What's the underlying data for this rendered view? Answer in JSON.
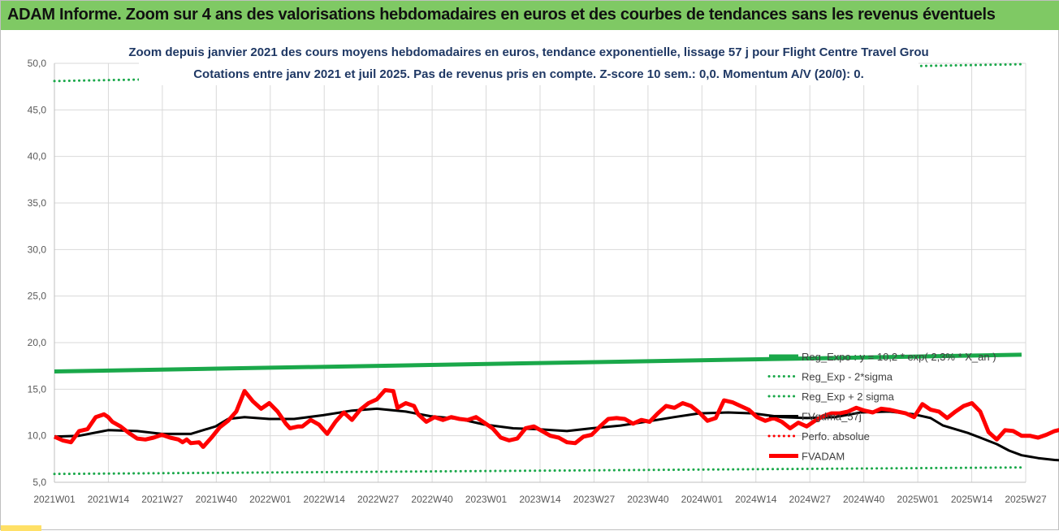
{
  "banner": {
    "title": "ADAM Informe. Zoom sur 4 ans des valorisations hebdomadaires en euros et des courbes de tendances sans les revenus éventuels",
    "color": "#7fc964"
  },
  "chart_data": {
    "type": "line",
    "title_line1": "Zoom depuis janvier 2021 des cours moyens hebdomadaires en euros, tendance exponentielle, lissage 57 j pour Flight Centre Travel Grou",
    "title_line2": "Cotations entre janv 2021 et juil 2025. Pas de revenus pris en compte. Z-score 10 sem.: 0,0. Momentum A/V (20/0): 0.",
    "xlabel": "",
    "ylabel": "",
    "ylim": [
      5,
      50
    ],
    "y_ticks": [
      "5,0",
      "10,0",
      "15,0",
      "20,0",
      "25,0",
      "30,0",
      "35,0",
      "40,0",
      "45,0",
      "50,0"
    ],
    "x_ticks": [
      "2021W01",
      "2021W14",
      "2021W27",
      "2021W40",
      "2022W01",
      "2022W14",
      "2022W27",
      "2022W40",
      "2023W01",
      "2023W14",
      "2023W27",
      "2023W40",
      "2024W01",
      "2024W14",
      "2024W27",
      "2024W40",
      "2025W01",
      "2025W14",
      "2025W27"
    ],
    "grid": true,
    "legend_position": "bottom-right",
    "weeks_total": 235,
    "series": [
      {
        "name": "Reg_Expo : y = 10,2 * exp( 2,3% * X_an )",
        "color": "#1aa84a",
        "style": "thick",
        "points": [
          [
            0,
            16.9
          ],
          [
            234,
            18.7
          ]
        ]
      },
      {
        "name": "Reg_Exp - 2*sigma",
        "color": "#1aa84a",
        "style": "dotted",
        "points": [
          [
            0,
            5.9
          ],
          [
            234,
            6.6
          ]
        ]
      },
      {
        "name": "Reg_Exp + 2 sigma",
        "color": "#1aa84a",
        "style": "dotted",
        "points": [
          [
            0,
            48.1
          ],
          [
            234,
            49.9
          ]
        ]
      },
      {
        "name": "FVgdma_57j",
        "color": "#000000",
        "style": "medium",
        "points": [
          [
            0,
            9.9
          ],
          [
            6,
            10.0
          ],
          [
            13,
            10.6
          ],
          [
            20,
            10.5
          ],
          [
            26,
            10.2
          ],
          [
            33,
            10.2
          ],
          [
            39,
            11.0
          ],
          [
            42,
            11.8
          ],
          [
            46,
            12.0
          ],
          [
            52,
            11.8
          ],
          [
            58,
            11.8
          ],
          [
            65,
            12.2
          ],
          [
            72,
            12.7
          ],
          [
            78,
            12.9
          ],
          [
            85,
            12.6
          ],
          [
            91,
            12.1
          ],
          [
            98,
            11.8
          ],
          [
            104,
            11.2
          ],
          [
            111,
            10.8
          ],
          [
            117,
            10.7
          ],
          [
            124,
            10.5
          ],
          [
            130,
            10.8
          ],
          [
            137,
            11.1
          ],
          [
            143,
            11.5
          ],
          [
            150,
            12.0
          ],
          [
            156,
            12.4
          ],
          [
            163,
            12.5
          ],
          [
            169,
            12.4
          ],
          [
            176,
            12.0
          ],
          [
            182,
            11.9
          ],
          [
            189,
            12.0
          ],
          [
            195,
            12.5
          ],
          [
            202,
            12.6
          ],
          [
            208,
            12.3
          ],
          [
            212,
            11.9
          ],
          [
            215,
            11.1
          ],
          [
            221,
            10.3
          ],
          [
            224,
            9.8
          ],
          [
            228,
            9.1
          ],
          [
            231,
            8.4
          ],
          [
            234,
            7.9
          ],
          [
            238,
            7.6
          ],
          [
            242,
            7.4
          ],
          [
            246,
            7.3
          ]
        ]
      },
      {
        "name": "Perfo. absolue",
        "color": "#ff0000",
        "style": "dotted",
        "points": []
      },
      {
        "name": "FVADAM",
        "color": "#ff0000",
        "style": "thick",
        "points": [
          [
            0,
            9.9
          ],
          [
            2,
            9.5
          ],
          [
            4,
            9.3
          ],
          [
            6,
            10.5
          ],
          [
            8,
            10.7
          ],
          [
            10,
            12.0
          ],
          [
            12,
            12.3
          ],
          [
            13,
            12.0
          ],
          [
            14,
            11.5
          ],
          [
            16,
            11.0
          ],
          [
            18,
            10.3
          ],
          [
            20,
            9.7
          ],
          [
            22,
            9.6
          ],
          [
            24,
            9.8
          ],
          [
            26,
            10.1
          ],
          [
            28,
            9.8
          ],
          [
            30,
            9.6
          ],
          [
            31,
            9.3
          ],
          [
            32,
            9.6
          ],
          [
            33,
            9.2
          ],
          [
            35,
            9.3
          ],
          [
            36,
            8.8
          ],
          [
            38,
            9.8
          ],
          [
            40,
            10.9
          ],
          [
            42,
            11.6
          ],
          [
            44,
            12.6
          ],
          [
            46,
            14.8
          ],
          [
            48,
            13.7
          ],
          [
            50,
            12.9
          ],
          [
            52,
            13.5
          ],
          [
            54,
            12.6
          ],
          [
            56,
            11.3
          ],
          [
            57,
            10.8
          ],
          [
            59,
            11.0
          ],
          [
            60,
            11.0
          ],
          [
            62,
            11.7
          ],
          [
            64,
            11.2
          ],
          [
            66,
            10.2
          ],
          [
            68,
            11.5
          ],
          [
            70,
            12.5
          ],
          [
            72,
            11.7
          ],
          [
            74,
            12.8
          ],
          [
            76,
            13.5
          ],
          [
            78,
            13.9
          ],
          [
            80,
            14.9
          ],
          [
            82,
            14.8
          ],
          [
            83,
            13.0
          ],
          [
            85,
            13.5
          ],
          [
            87,
            13.2
          ],
          [
            88,
            12.3
          ],
          [
            90,
            11.5
          ],
          [
            92,
            12.0
          ],
          [
            94,
            11.7
          ],
          [
            96,
            12.0
          ],
          [
            98,
            11.8
          ],
          [
            100,
            11.7
          ],
          [
            102,
            12.0
          ],
          [
            104,
            11.4
          ],
          [
            106,
            10.8
          ],
          [
            108,
            9.8
          ],
          [
            110,
            9.5
          ],
          [
            112,
            9.7
          ],
          [
            114,
            10.8
          ],
          [
            116,
            11.0
          ],
          [
            118,
            10.5
          ],
          [
            120,
            10.0
          ],
          [
            122,
            9.8
          ],
          [
            124,
            9.3
          ],
          [
            126,
            9.2
          ],
          [
            128,
            9.9
          ],
          [
            130,
            10.1
          ],
          [
            132,
            11.0
          ],
          [
            134,
            11.8
          ],
          [
            136,
            11.9
          ],
          [
            138,
            11.8
          ],
          [
            140,
            11.3
          ],
          [
            142,
            11.7
          ],
          [
            144,
            11.5
          ],
          [
            146,
            12.4
          ],
          [
            148,
            13.2
          ],
          [
            150,
            13.0
          ],
          [
            152,
            13.5
          ],
          [
            154,
            13.2
          ],
          [
            156,
            12.5
          ],
          [
            158,
            11.6
          ],
          [
            160,
            11.9
          ],
          [
            162,
            13.8
          ],
          [
            164,
            13.6
          ],
          [
            166,
            13.2
          ],
          [
            168,
            12.8
          ],
          [
            170,
            12.0
          ],
          [
            172,
            11.6
          ],
          [
            174,
            11.9
          ],
          [
            176,
            11.5
          ],
          [
            178,
            10.8
          ],
          [
            180,
            11.4
          ],
          [
            182,
            11.0
          ],
          [
            184,
            11.6
          ],
          [
            186,
            12.1
          ],
          [
            188,
            12.4
          ],
          [
            190,
            12.4
          ],
          [
            192,
            12.6
          ],
          [
            194,
            13.0
          ],
          [
            196,
            12.7
          ],
          [
            198,
            12.5
          ],
          [
            200,
            12.9
          ],
          [
            202,
            12.8
          ],
          [
            204,
            12.6
          ],
          [
            206,
            12.4
          ],
          [
            208,
            12.0
          ],
          [
            210,
            13.4
          ],
          [
            212,
            12.8
          ],
          [
            214,
            12.6
          ],
          [
            216,
            11.9
          ],
          [
            218,
            12.6
          ],
          [
            220,
            13.2
          ],
          [
            222,
            13.5
          ],
          [
            224,
            12.6
          ],
          [
            226,
            10.4
          ],
          [
            228,
            9.6
          ],
          [
            230,
            10.6
          ],
          [
            232,
            10.5
          ],
          [
            234,
            10.0
          ],
          [
            236,
            10.0
          ],
          [
            238,
            9.8
          ],
          [
            240,
            10.1
          ],
          [
            242,
            10.5
          ],
          [
            244,
            10.7
          ],
          [
            246,
            10.4
          ]
        ]
      }
    ]
  }
}
